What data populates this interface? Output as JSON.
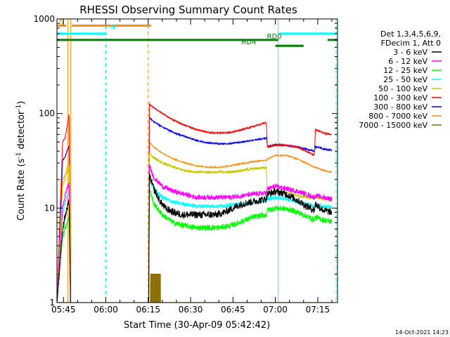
{
  "chart_data": {
    "type": "line",
    "title": "RHESSI Observing Summary Count Rates",
    "xlabel": "Start Time (30-Apr-09 05:42:42)",
    "ylabel_main": "Count Rate (s",
    "ylabel_sup1": "-1",
    "ylabel_mid": " detector",
    "ylabel_sup2": "-1",
    "ylabel_end": ")",
    "x_unit": "minutes of day (UT)",
    "xlim": [
      342.7,
      442.0
    ],
    "ylim": [
      1,
      1000
    ],
    "yscale": "log",
    "x_ticks": [
      {
        "value": 345,
        "label": "05:45"
      },
      {
        "value": 360,
        "label": "06:00"
      },
      {
        "value": 375,
        "label": "06:15"
      },
      {
        "value": 390,
        "label": "06:30"
      },
      {
        "value": 405,
        "label": "06:45"
      },
      {
        "value": 420,
        "label": "07:00"
      },
      {
        "value": 435,
        "label": "07:15"
      }
    ],
    "y_ticks": [
      {
        "value": 1,
        "label": "1"
      },
      {
        "value": 10,
        "label": "10"
      },
      {
        "value": 100,
        "label": "100"
      },
      {
        "value": 1000,
        "label": "1000"
      }
    ],
    "legend_header": [
      "Det 1,3,4,5,6,9,",
      "FDecim 1, Att 0"
    ],
    "legend_position": "right",
    "series": [
      {
        "name": "3 - 6 keV",
        "color": "#000000",
        "noise": 0.09,
        "points": [
          [
            342.7,
            1
          ],
          [
            344.7,
            6
          ],
          [
            345.5,
            8
          ],
          [
            346.2,
            9.5
          ],
          [
            347.0,
            12
          ],
          [
            347.5,
            1
          ],
          [
            360,
            1
          ],
          [
            375.2,
            1
          ],
          [
            375.4,
            22
          ],
          [
            377,
            16
          ],
          [
            379,
            12
          ],
          [
            381,
            10
          ],
          [
            384,
            9
          ],
          [
            387,
            8.5
          ],
          [
            390,
            8.5
          ],
          [
            393,
            8.5
          ],
          [
            396,
            8.5
          ],
          [
            399,
            8.5
          ],
          [
            402,
            9
          ],
          [
            405,
            10
          ],
          [
            408,
            11
          ],
          [
            411,
            11.5
          ],
          [
            414,
            12
          ],
          [
            416.8,
            12.5
          ],
          [
            417.2,
            14
          ],
          [
            420,
            15
          ],
          [
            424,
            14
          ],
          [
            428,
            12
          ],
          [
            431,
            10.5
          ],
          [
            433.8,
            9.5
          ],
          [
            434.2,
            11
          ],
          [
            437,
            9.5
          ],
          [
            440,
            9
          ]
        ]
      },
      {
        "name": "6 - 12 keV",
        "color": "#ff00ff",
        "noise": 0.06,
        "points": [
          [
            342.7,
            1
          ],
          [
            344.7,
            10
          ],
          [
            345.5,
            13
          ],
          [
            346.2,
            16
          ],
          [
            347.0,
            18
          ],
          [
            347.5,
            1
          ],
          [
            360,
            1
          ],
          [
            375.2,
            1
          ],
          [
            375.4,
            28
          ],
          [
            377,
            21
          ],
          [
            380,
            17
          ],
          [
            384,
            15
          ],
          [
            388,
            14
          ],
          [
            392,
            13
          ],
          [
            396,
            13
          ],
          [
            400,
            13
          ],
          [
            404,
            13
          ],
          [
            408,
            13.5
          ],
          [
            412,
            14
          ],
          [
            416.8,
            14.5
          ],
          [
            417.2,
            16
          ],
          [
            420,
            17
          ],
          [
            424,
            16
          ],
          [
            428,
            15
          ],
          [
            431,
            14
          ],
          [
            433.8,
            13
          ],
          [
            434.2,
            13.5
          ],
          [
            437,
            13
          ],
          [
            440,
            12.5
          ]
        ]
      },
      {
        "name": "12 - 25 keV",
        "color": "#00ff00",
        "noise": 0.07,
        "points": [
          [
            342.7,
            1
          ],
          [
            344.7,
            5
          ],
          [
            345.5,
            6
          ],
          [
            346.2,
            7
          ],
          [
            347.0,
            8
          ],
          [
            347.5,
            1
          ],
          [
            360,
            1
          ],
          [
            375.2,
            1
          ],
          [
            375.4,
            16
          ],
          [
            377,
            11
          ],
          [
            380,
            8.5
          ],
          [
            384,
            7
          ],
          [
            388,
            6.5
          ],
          [
            392,
            6.2
          ],
          [
            396,
            6.2
          ],
          [
            400,
            6.2
          ],
          [
            404,
            6.5
          ],
          [
            408,
            7.2
          ],
          [
            412,
            8
          ],
          [
            416.8,
            8.5
          ],
          [
            417.2,
            9.5
          ],
          [
            420,
            10
          ],
          [
            424,
            9.8
          ],
          [
            428,
            9
          ],
          [
            431,
            8.2
          ],
          [
            433.8,
            7.5
          ],
          [
            434.2,
            8
          ],
          [
            437,
            7.5
          ],
          [
            440,
            7.2
          ]
        ]
      },
      {
        "name": "25 - 50 keV",
        "color": "#00ffff",
        "noise": 0.05,
        "points": [
          [
            342.7,
            1
          ],
          [
            344.7,
            9
          ],
          [
            345.5,
            11
          ],
          [
            346.2,
            13
          ],
          [
            347.0,
            15
          ],
          [
            347.5,
            1
          ],
          [
            360,
            1
          ],
          [
            375.2,
            1
          ],
          [
            375.4,
            20
          ],
          [
            377,
            16
          ],
          [
            380,
            13
          ],
          [
            384,
            11.5
          ],
          [
            388,
            11
          ],
          [
            392,
            10.5
          ],
          [
            396,
            10.5
          ],
          [
            400,
            10.5
          ],
          [
            404,
            10.8
          ],
          [
            408,
            11
          ],
          [
            412,
            11.5
          ],
          [
            416.8,
            12
          ],
          [
            417.2,
            12.5
          ],
          [
            420,
            13
          ],
          [
            424,
            12.5
          ],
          [
            428,
            11.5
          ],
          [
            431,
            11
          ],
          [
            433.8,
            10.5
          ],
          [
            434.2,
            11
          ],
          [
            437,
            10.5
          ],
          [
            440,
            10.2
          ]
        ]
      },
      {
        "name": "50 - 100 keV",
        "color": "#c8c800",
        "noise": 0.03,
        "points": [
          [
            342.7,
            1
          ],
          [
            344.7,
            17
          ],
          [
            345.5,
            20
          ],
          [
            346.2,
            26
          ],
          [
            347.0,
            30
          ],
          [
            347.5,
            1
          ],
          [
            360,
            1
          ],
          [
            375.2,
            1
          ],
          [
            375.4,
            38
          ],
          [
            377,
            34
          ],
          [
            380,
            30
          ],
          [
            384,
            27
          ],
          [
            388,
            25
          ],
          [
            392,
            24
          ],
          [
            396,
            24
          ],
          [
            400,
            24
          ],
          [
            404,
            24
          ],
          [
            408,
            25
          ],
          [
            412,
            26
          ],
          [
            416.8,
            27
          ],
          [
            417.2,
            14
          ],
          [
            420,
            15
          ],
          [
            424,
            14.5
          ],
          [
            428,
            13.5
          ],
          [
            431,
            13
          ],
          [
            433.8,
            12.5
          ],
          [
            434.2,
            13
          ],
          [
            437,
            12.5
          ],
          [
            440,
            12
          ]
        ]
      },
      {
        "name": "100 - 300 keV",
        "color": "#ff0000",
        "noise": 0.02,
        "points": [
          [
            342.7,
            1
          ],
          [
            344.7,
            50
          ],
          [
            345.5,
            55
          ],
          [
            346.2,
            70
          ],
          [
            347.0,
            100
          ],
          [
            347.5,
            1
          ],
          [
            360,
            1
          ],
          [
            375.2,
            1
          ],
          [
            375.4,
            125
          ],
          [
            377,
            115
          ],
          [
            380,
            100
          ],
          [
            384,
            85
          ],
          [
            388,
            75
          ],
          [
            392,
            68
          ],
          [
            396,
            63
          ],
          [
            400,
            62
          ],
          [
            404,
            63
          ],
          [
            408,
            67
          ],
          [
            412,
            73
          ],
          [
            416.8,
            80
          ],
          [
            417.2,
            44
          ],
          [
            420,
            46
          ],
          [
            424,
            46
          ],
          [
            428,
            44
          ],
          [
            431,
            40
          ],
          [
            433.8,
            36
          ],
          [
            434.2,
            68
          ],
          [
            437,
            62
          ],
          [
            440,
            60
          ]
        ]
      },
      {
        "name": "300 - 800 keV",
        "color": "#0000ff",
        "noise": 0.02,
        "points": [
          [
            342.7,
            1
          ],
          [
            344.7,
            32
          ],
          [
            345.5,
            34
          ],
          [
            346.2,
            40
          ],
          [
            347.0,
            45
          ],
          [
            347.5,
            1
          ],
          [
            360,
            1
          ],
          [
            375.2,
            1
          ],
          [
            375.4,
            90
          ],
          [
            377,
            82
          ],
          [
            380,
            72
          ],
          [
            384,
            63
          ],
          [
            388,
            57
          ],
          [
            392,
            52
          ],
          [
            396,
            49
          ],
          [
            400,
            48
          ],
          [
            404,
            48
          ],
          [
            408,
            50
          ],
          [
            412,
            52
          ],
          [
            416.8,
            55
          ],
          [
            417.2,
            45
          ],
          [
            420,
            47
          ],
          [
            424,
            46
          ],
          [
            428,
            44
          ],
          [
            431,
            42
          ],
          [
            433.8,
            40
          ],
          [
            434.2,
            45
          ],
          [
            437,
            42
          ],
          [
            440,
            41
          ]
        ]
      },
      {
        "name": "800 - 7000 keV",
        "color": "#ff8c00",
        "noise": 0.015,
        "points": [
          [
            342.7,
            1
          ],
          [
            344.7,
            20
          ],
          [
            345.5,
            22
          ],
          [
            346.2,
            24
          ],
          [
            347.0,
            26
          ],
          [
            347.5,
            1
          ],
          [
            360,
            1
          ],
          [
            375.2,
            1
          ],
          [
            375.4,
            50
          ],
          [
            377,
            44
          ],
          [
            380,
            38
          ],
          [
            384,
            33
          ],
          [
            388,
            30
          ],
          [
            392,
            28
          ],
          [
            396,
            27
          ],
          [
            400,
            27
          ],
          [
            404,
            28
          ],
          [
            408,
            29.5
          ],
          [
            412,
            31
          ],
          [
            416.8,
            32
          ],
          [
            417.2,
            33
          ],
          [
            420,
            36
          ],
          [
            424,
            36
          ],
          [
            428,
            33
          ],
          [
            431,
            30
          ],
          [
            433.8,
            27
          ],
          [
            434.2,
            27
          ],
          [
            437,
            25
          ],
          [
            440,
            24
          ]
        ]
      },
      {
        "name": "7000 - 15000 keV",
        "color": "#8b6e00",
        "noise": 0,
        "points": [
          [
            342.7,
            1
          ],
          [
            375.8,
            1
          ],
          [
            375.9,
            2
          ],
          [
            379.2,
            2
          ],
          [
            379.3,
            1
          ],
          [
            442,
            1
          ]
        ]
      }
    ],
    "annotations": [
      {
        "text": "S",
        "color": "#ff8c00",
        "x": 343.5,
        "y": 850
      },
      {
        "text": "N",
        "color": "#00ffff",
        "x": 361.5,
        "y": 750
      },
      {
        "text": "RD0",
        "color": "#008000",
        "x": 417.0,
        "y": 600
      },
      {
        "text": "RD4",
        "color": "#008000",
        "x": 408.0,
        "y": 520
      }
    ],
    "state_bars": [
      {
        "color": "#ff8c00",
        "x1": 342.7,
        "x2": 346.0,
        "y": 850
      },
      {
        "color": "#ff8c00",
        "x1": 348.0,
        "x2": 376.0,
        "y": 850
      },
      {
        "color": "#00ffff",
        "x1": 342.7,
        "x2": 360.0,
        "y": 700
      },
      {
        "color": "#00ffff",
        "x1": 421.2,
        "x2": 442.0,
        "y": 700
      },
      {
        "color": "#008000",
        "x1": 342.7,
        "x2": 421.0,
        "y": 600
      },
      {
        "color": "#008000",
        "x1": 438.5,
        "x2": 442.0,
        "y": 600
      },
      {
        "color": "#008000",
        "x1": 420.0,
        "x2": 430.0,
        "y": 520
      }
    ],
    "vertical_lines": [
      {
        "x": 342.7,
        "color": "#00ffff",
        "dash": false
      },
      {
        "x": 346.6,
        "color": "#ff8c00",
        "dash": false
      },
      {
        "x": 347.6,
        "color": "#ff8c00",
        "dash": false
      },
      {
        "x": 360.0,
        "color": "#00ffff",
        "dash": true
      },
      {
        "x": 375.0,
        "color": "#ff8c00",
        "dash": true
      },
      {
        "x": 421.0,
        "color": "#00ffff",
        "dash": false
      },
      {
        "x": 441.5,
        "color": "#00ffff",
        "dash": true
      }
    ]
  },
  "footer": {
    "timestamp": "14-Oct-2021 14:23"
  }
}
